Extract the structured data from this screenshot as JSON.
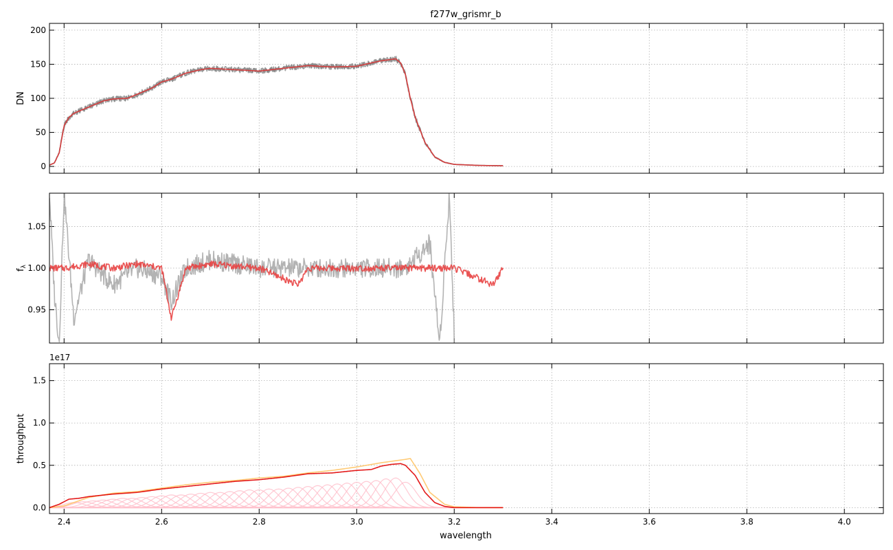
{
  "figure": {
    "title": "f277w_grismr_b",
    "xlabel": "wavelength"
  },
  "chart_data": [
    {
      "type": "line",
      "title": "f277w_grismr_b",
      "xlabel": "",
      "ylabel": "DN",
      "xlim": [
        2.37,
        4.08
      ],
      "ylim": [
        -10,
        210
      ],
      "xticks": [
        2.4,
        2.6,
        2.8,
        3.0,
        3.2,
        3.4,
        3.6,
        3.8,
        4.0
      ],
      "yticks": [
        0,
        50,
        100,
        150,
        200
      ],
      "ytick_labels": [
        "0",
        "50",
        "100",
        "150",
        "200"
      ],
      "xtick_labels_visible": false,
      "grid": true,
      "series": [
        {
          "color": "#808080",
          "style": "noisy data (two exposures)",
          "x": [
            2.37,
            2.38,
            2.39,
            2.4,
            2.41,
            2.42,
            2.45,
            2.48,
            2.5,
            2.53,
            2.55,
            2.58,
            2.6,
            2.62,
            2.65,
            2.68,
            2.7,
            2.75,
            2.8,
            2.85,
            2.9,
            2.95,
            3.0,
            3.03,
            3.05,
            3.08,
            3.09,
            3.1,
            3.11,
            3.12,
            3.14,
            3.16,
            3.18,
            3.2,
            3.25,
            3.3
          ],
          "y": [
            2,
            5,
            20,
            60,
            72,
            78,
            87,
            96,
            99,
            100,
            106,
            115,
            124,
            128,
            137,
            142,
            144,
            142,
            140,
            144,
            148,
            146,
            147,
            152,
            155,
            158,
            152,
            135,
            100,
            72,
            35,
            14,
            6,
            3,
            1.5,
            1
          ]
        },
        {
          "color": "#e03030",
          "style": "model",
          "x": [
            2.37,
            2.38,
            2.39,
            2.4,
            2.41,
            2.42,
            2.45,
            2.48,
            2.5,
            2.53,
            2.55,
            2.58,
            2.6,
            2.62,
            2.65,
            2.68,
            2.7,
            2.75,
            2.8,
            2.85,
            2.9,
            2.95,
            3.0,
            3.03,
            3.05,
            3.08,
            3.09,
            3.1,
            3.11,
            3.12,
            3.14,
            3.16,
            3.18,
            3.2,
            3.25,
            3.3
          ],
          "y": [
            2,
            5,
            20,
            60,
            72,
            78,
            87,
            96,
            99,
            100,
            106,
            115,
            124,
            128,
            137,
            142,
            144,
            142,
            140,
            144,
            148,
            146,
            147,
            152,
            155,
            158,
            152,
            135,
            100,
            72,
            35,
            14,
            6,
            3,
            1.5,
            1
          ]
        }
      ]
    },
    {
      "type": "line",
      "xlabel": "",
      "ylabel": "f_λ",
      "xlim": [
        2.37,
        4.08
      ],
      "ylim": [
        0.91,
        1.09
      ],
      "xticks": [
        2.4,
        2.6,
        2.8,
        3.0,
        3.2,
        3.4,
        3.6,
        3.8,
        4.0
      ],
      "yticks": [
        0.95,
        1.0,
        1.05
      ],
      "ytick_labels": [
        "0.95",
        "1.00",
        "1.05"
      ],
      "xtick_labels_visible": false,
      "grid": true,
      "series": [
        {
          "color": "#999999",
          "style": "normalized data",
          "x": [
            2.37,
            2.38,
            2.39,
            2.4,
            2.42,
            2.45,
            2.5,
            2.55,
            2.6,
            2.62,
            2.65,
            2.7,
            2.8,
            2.9,
            3.0,
            3.1,
            3.15,
            3.17,
            3.19,
            3.2
          ],
          "y": [
            1.09,
            0.97,
            0.91,
            1.09,
            0.94,
            1.01,
            0.98,
            1.0,
            0.99,
            0.96,
            1.0,
            1.01,
            1.0,
            1.0,
            1.0,
            1.0,
            1.03,
            0.91,
            1.09,
            0.92
          ]
        },
        {
          "color": "#e84040",
          "style": "normalized model",
          "x": [
            2.37,
            2.4,
            2.45,
            2.5,
            2.55,
            2.6,
            2.62,
            2.65,
            2.7,
            2.8,
            2.88,
            2.9,
            3.0,
            3.1,
            3.2,
            3.28,
            3.3
          ],
          "y": [
            1.0,
            1.0,
            1.005,
            1.0,
            1.005,
            1.0,
            0.94,
            1.0,
            1.005,
            1.0,
            0.98,
            1.0,
            1.0,
            1.0,
            1.0,
            0.98,
            1.0
          ]
        }
      ]
    },
    {
      "type": "line",
      "xlabel": "wavelength",
      "ylabel": "throughput",
      "offset_text": "1e17",
      "xlim": [
        2.37,
        4.08
      ],
      "ylim": [
        -0.07,
        1.7
      ],
      "xticks": [
        2.4,
        2.6,
        2.8,
        3.0,
        3.2,
        3.4,
        3.6,
        3.8,
        4.0
      ],
      "xtick_labels": [
        "2.4",
        "2.6",
        "2.8",
        "3.0",
        "3.2",
        "3.4",
        "3.6",
        "3.8",
        "4.0"
      ],
      "yticks": [
        0.0,
        0.5,
        1.0,
        1.5
      ],
      "ytick_labels": [
        "0.0",
        "0.5",
        "1.0",
        "1.5"
      ],
      "grid": true,
      "series": [
        {
          "color": "#ffc466",
          "style": "envelope",
          "x": [
            2.37,
            2.4,
            2.45,
            2.5,
            2.55,
            2.6,
            2.65,
            2.7,
            2.75,
            2.8,
            2.85,
            2.9,
            2.95,
            3.0,
            3.05,
            3.1,
            3.11,
            3.13,
            3.15,
            3.18,
            3.2,
            3.25,
            3.3
          ],
          "y": [
            0.0,
            0.02,
            0.12,
            0.17,
            0.19,
            0.23,
            0.27,
            0.3,
            0.32,
            0.35,
            0.37,
            0.41,
            0.44,
            0.48,
            0.53,
            0.57,
            0.58,
            0.4,
            0.18,
            0.04,
            0.01,
            0.0,
            0.0
          ]
        },
        {
          "color": "#e00000",
          "style": "total",
          "x": [
            2.37,
            2.39,
            2.41,
            2.43,
            2.45,
            2.5,
            2.55,
            2.6,
            2.65,
            2.7,
            2.75,
            2.8,
            2.85,
            2.9,
            2.95,
            3.0,
            3.03,
            3.05,
            3.07,
            3.09,
            3.1,
            3.12,
            3.14,
            3.16,
            3.18,
            3.2,
            3.25,
            3.3
          ],
          "y": [
            0.0,
            0.04,
            0.1,
            0.11,
            0.13,
            0.16,
            0.18,
            0.22,
            0.25,
            0.28,
            0.31,
            0.33,
            0.36,
            0.4,
            0.41,
            0.44,
            0.45,
            0.49,
            0.51,
            0.52,
            0.5,
            0.38,
            0.18,
            0.06,
            0.015,
            0.0,
            0.0,
            0.0
          ]
        }
      ],
      "component_peaks": {
        "color": "#ffc0cb",
        "centers": [
          2.42,
          2.44,
          2.46,
          2.48,
          2.5,
          2.52,
          2.54,
          2.56,
          2.58,
          2.6,
          2.62,
          2.64,
          2.66,
          2.68,
          2.7,
          2.72,
          2.74,
          2.76,
          2.78,
          2.8,
          2.82,
          2.84,
          2.86,
          2.88,
          2.9,
          2.92,
          2.94,
          2.96,
          2.98,
          3.0,
          3.02,
          3.04,
          3.06,
          3.08,
          3.1
        ],
        "heights": [
          0.06,
          0.07,
          0.08,
          0.09,
          0.1,
          0.11,
          0.11,
          0.12,
          0.13,
          0.14,
          0.15,
          0.15,
          0.16,
          0.17,
          0.18,
          0.18,
          0.19,
          0.2,
          0.21,
          0.21,
          0.22,
          0.22,
          0.23,
          0.24,
          0.25,
          0.26,
          0.27,
          0.28,
          0.29,
          0.3,
          0.31,
          0.32,
          0.34,
          0.35,
          0.3
        ]
      }
    }
  ]
}
